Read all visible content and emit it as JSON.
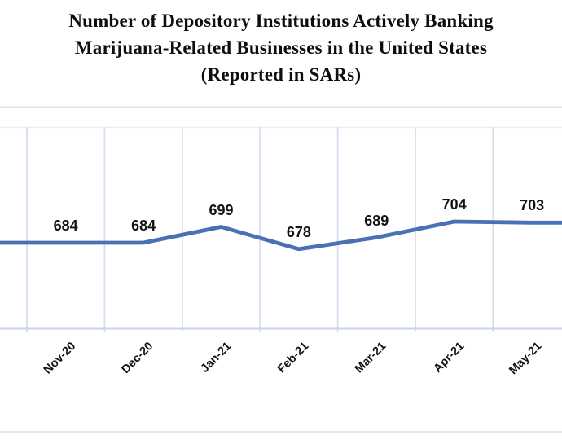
{
  "title": {
    "line1": "Number of Depository Institutions Actively Banking",
    "line2": "Marijuana-Related Businesses in the United States",
    "line3": "(Reported in SARs)"
  },
  "chart_data": {
    "type": "line",
    "title": "Number of Depository Institutions Actively Banking Marijuana-Related Businesses in the United States (Reported in SARs)",
    "categories": [
      "Nov-20",
      "Dec-20",
      "Jan-21",
      "Feb-21",
      "Mar-21",
      "Apr-21",
      "May-21"
    ],
    "values": [
      684,
      684,
      699,
      678,
      689,
      704,
      703
    ],
    "xlabel": "",
    "ylabel": "",
    "data_labels_shown": true,
    "legend": false,
    "grid": "vertical",
    "y_axis_labels_visible": false,
    "colors": {
      "series_line": "#4A71B4",
      "vertical_gridline": "#D5DEEE",
      "axis_line": "#C7D4E9",
      "top_gridline": "#D9E2EF",
      "bottom_border": "#DFE7F2",
      "text": "#141414"
    }
  }
}
